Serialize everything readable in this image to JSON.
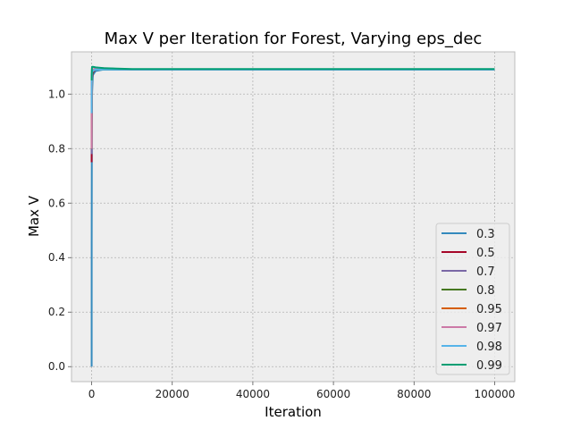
{
  "chart_data": {
    "type": "line",
    "title": "Max V per Iteration for Forest, Varying eps_dec",
    "xlabel": "Iteration",
    "ylabel": "Max V",
    "xlim": [
      -5000,
      105000
    ],
    "ylim": [
      -0.055,
      1.155
    ],
    "xticks": [
      0,
      20000,
      40000,
      60000,
      80000,
      100000
    ],
    "xtick_labels": [
      "0",
      "20000",
      "40000",
      "60000",
      "80000",
      "100000"
    ],
    "yticks": [
      0.0,
      0.2,
      0.4,
      0.6,
      0.8,
      1.0
    ],
    "ytick_labels": [
      "0.0",
      "0.2",
      "0.4",
      "0.6",
      "0.8",
      "1.0"
    ],
    "grid": true,
    "legend_position": "lower-right",
    "series": [
      {
        "name": "0.3",
        "color": "#348ABD",
        "x": [
          0,
          10,
          50,
          100,
          300,
          1000,
          3000,
          10000,
          30000,
          60000,
          100000
        ],
        "y": [
          0.0,
          0.45,
          0.85,
          1.0,
          1.07,
          1.085,
          1.09,
          1.09,
          1.09,
          1.09,
          1.09
        ]
      },
      {
        "name": "0.5",
        "color": "#A60628",
        "x": [
          0,
          10,
          50,
          100,
          300,
          1000,
          3000,
          10000,
          30000,
          60000,
          100000
        ],
        "y": [
          0.75,
          0.9,
          1.02,
          1.06,
          1.08,
          1.09,
          1.09,
          1.09,
          1.09,
          1.09,
          1.09
        ]
      },
      {
        "name": "0.7",
        "color": "#7A68A6",
        "x": [
          0,
          10,
          50,
          100,
          300,
          1000,
          3000,
          10000,
          30000,
          60000,
          100000
        ],
        "y": [
          0.78,
          0.92,
          1.03,
          1.07,
          1.085,
          1.09,
          1.09,
          1.09,
          1.09,
          1.09,
          1.09
        ]
      },
      {
        "name": "0.8",
        "color": "#467821",
        "x": [
          0,
          10,
          50,
          100,
          300,
          1000,
          3000,
          10000,
          30000,
          60000,
          100000
        ],
        "y": [
          0.8,
          0.93,
          1.04,
          1.07,
          1.085,
          1.09,
          1.09,
          1.09,
          1.09,
          1.09,
          1.09
        ]
      },
      {
        "name": "0.95",
        "color": "#D55E00",
        "x": [
          0,
          10,
          50,
          100,
          300,
          1000,
          3000,
          10000,
          30000,
          60000,
          100000
        ],
        "y": [
          0.8,
          0.94,
          1.05,
          1.08,
          1.09,
          1.092,
          1.092,
          1.09,
          1.09,
          1.09,
          1.09
        ]
      },
      {
        "name": "0.97",
        "color": "#CC79A7",
        "x": [
          0,
          10,
          50,
          100,
          300,
          1000,
          3000,
          10000,
          30000,
          60000,
          100000
        ],
        "y": [
          0.8,
          0.93,
          1.05,
          1.08,
          1.09,
          1.095,
          1.095,
          1.09,
          1.09,
          1.09,
          1.09
        ]
      },
      {
        "name": "0.98",
        "color": "#56B4E9",
        "x": [
          0,
          10,
          50,
          100,
          300,
          1000,
          3000,
          10000,
          30000,
          60000,
          100000
        ],
        "y": [
          0.93,
          1.02,
          1.07,
          1.08,
          1.085,
          1.09,
          1.09,
          1.09,
          1.09,
          1.09,
          1.09
        ]
      },
      {
        "name": "0.99",
        "color": "#009E73",
        "x": [
          0,
          10,
          50,
          100,
          300,
          1000,
          3000,
          10000,
          30000,
          60000,
          100000
        ],
        "y": [
          1.05,
          1.07,
          1.09,
          1.1,
          1.1,
          1.098,
          1.095,
          1.092,
          1.092,
          1.092,
          1.092
        ]
      }
    ]
  }
}
